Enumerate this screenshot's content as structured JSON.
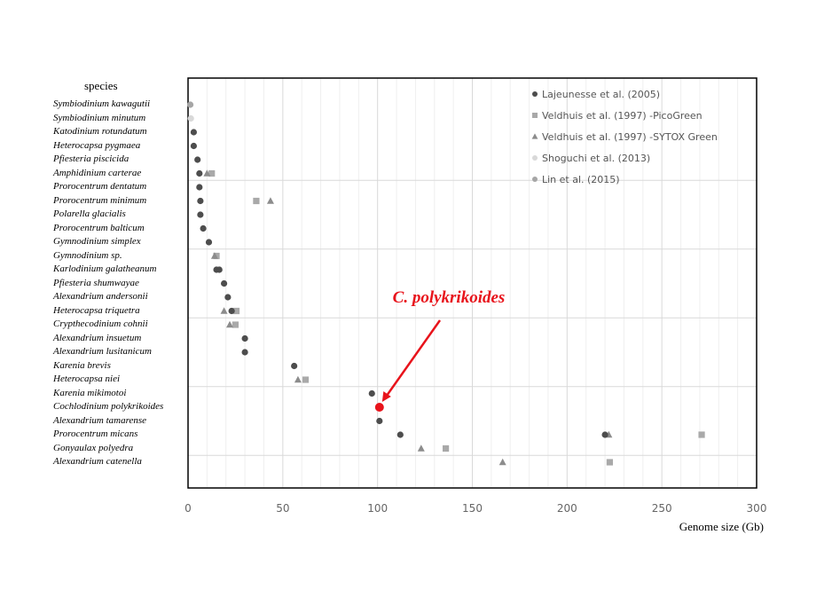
{
  "chart_data": {
    "type": "scatter",
    "title": "",
    "y_header": "species",
    "xlabel": "Genome size (Gb)",
    "xlim": [
      0,
      300
    ],
    "xticks": [
      0,
      50,
      100,
      150,
      200,
      250,
      300
    ],
    "grid": true,
    "legend_position": "top-right",
    "categories": [
      "Symbiodinium kawagutii",
      "Symbiodinium minutum",
      "Katodinium rotundatum",
      "Heterocapsa pygmaea",
      "Pfiesteria piscicida",
      "Amphidinium carterae",
      "Prorocentrum dentatum",
      "Prorocentrum minimum",
      "Polarella glacialis",
      "Prorocentrum balticum",
      "Gymnodinium simplex",
      "Gymnodinium sp.",
      "Karlodinium galatheanum",
      "Pfiesteria shumwayae",
      "Alexandrium andersonii",
      "Heterocapsa triquetra",
      "Crypthecodinium cohnii",
      "Alexandrium insuetum",
      "Alexandrium lusitanicum",
      "Karenia brevis",
      "Heterocapsa niei",
      "Karenia mikimotoi",
      "Cochlodinium polykrikoides",
      "Alexandrium tamarense",
      "Prorocentrum micans",
      "Gonyaulax polyedra",
      "Alexandrium catenella"
    ],
    "series": [
      {
        "name": "Lajeunesse  et al. (2005)",
        "marker": "circle",
        "color": "#4d4d4d",
        "points": [
          {
            "species": "Katodinium rotundatum",
            "x": 3
          },
          {
            "species": "Heterocapsa pygmaea",
            "x": 3
          },
          {
            "species": "Pfiesteria piscicida",
            "x": 5
          },
          {
            "species": "Amphidinium carterae",
            "x": 6
          },
          {
            "species": "Prorocentrum dentatum",
            "x": 6
          },
          {
            "species": "Prorocentrum minimum",
            "x": 6.5
          },
          {
            "species": "Polarella glacialis",
            "x": 6.5
          },
          {
            "species": "Prorocentrum balticum",
            "x": 8
          },
          {
            "species": "Gymnodinium simplex",
            "x": 11
          },
          {
            "species": "Karlodinium galatheanum",
            "x": 15
          },
          {
            "species": "Karlodinium galatheanum",
            "x": 16.5
          },
          {
            "species": "Pfiesteria shumwayae",
            "x": 19
          },
          {
            "species": "Alexandrium andersonii",
            "x": 21
          },
          {
            "species": "Heterocapsa triquetra",
            "x": 23
          },
          {
            "species": "Alexandrium insuetum",
            "x": 30
          },
          {
            "species": "Alexandrium lusitanicum",
            "x": 30
          },
          {
            "species": "Karenia brevis",
            "x": 56
          },
          {
            "species": "Karenia mikimotoi",
            "x": 97
          },
          {
            "species": "Alexandrium tamarense",
            "x": 101
          },
          {
            "species": "Prorocentrum micans",
            "x": 112
          },
          {
            "species": "Prorocentrum micans",
            "x": 220
          }
        ]
      },
      {
        "name": "Veldhuis et al. (1997) -PicoGreen",
        "marker": "square",
        "color": "#a9a9a9",
        "points": [
          {
            "species": "Amphidinium carterae",
            "x": 12.5
          },
          {
            "species": "Prorocentrum minimum",
            "x": 36
          },
          {
            "species": "Gymnodinium sp.",
            "x": 15
          },
          {
            "species": "Heterocapsa triquetra",
            "x": 25.5
          },
          {
            "species": "Crypthecodinium cohnii",
            "x": 25
          },
          {
            "species": "Heterocapsa niei",
            "x": 62
          },
          {
            "species": "Prorocentrum micans",
            "x": 271
          },
          {
            "species": "Gonyaulax polyedra",
            "x": 136
          },
          {
            "species": "Alexandrium catenella",
            "x": 222.5
          }
        ]
      },
      {
        "name": "Veldhuis et al. (1997) -SYTOX Green",
        "marker": "triangle",
        "color": "#8c8c8c",
        "points": [
          {
            "species": "Amphidinium carterae",
            "x": 10
          },
          {
            "species": "Prorocentrum minimum",
            "x": 43.5
          },
          {
            "species": "Gymnodinium sp.",
            "x": 14
          },
          {
            "species": "Heterocapsa triquetra",
            "x": 19
          },
          {
            "species": "Crypthecodinium cohnii",
            "x": 22
          },
          {
            "species": "Heterocapsa niei",
            "x": 58
          },
          {
            "species": "Prorocentrum micans",
            "x": 222
          },
          {
            "species": "Gonyaulax polyedra",
            "x": 123
          },
          {
            "species": "Alexandrium catenella",
            "x": 166
          }
        ]
      },
      {
        "name": "Shoguchi et al. (2013)",
        "marker": "circle",
        "color": "#d9d9d9",
        "points": [
          {
            "species": "Symbiodinium minutum",
            "x": 1.5
          }
        ]
      },
      {
        "name": "Lin et al. (2015)",
        "marker": "circle",
        "color": "#a6a6a6",
        "points": [
          {
            "species": "Symbiodinium kawagutii",
            "x": 1.2
          }
        ]
      }
    ],
    "highlight": {
      "label": "C. polykrikoides",
      "species": "Cochlodinium polykrikoides",
      "x": 101,
      "color": "#e8131b"
    }
  }
}
